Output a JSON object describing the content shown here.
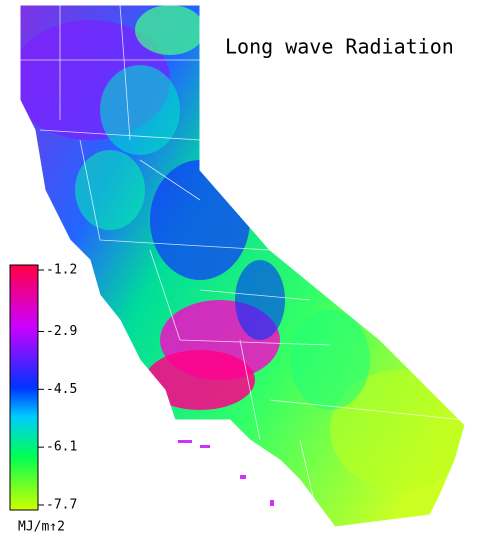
{
  "title": "Long wave Radiation",
  "legend": {
    "ticks": [
      -1.2,
      -2.9,
      -4.5,
      -6.1,
      -7.7
    ],
    "unit": "MJ/m↑2"
  }
}
